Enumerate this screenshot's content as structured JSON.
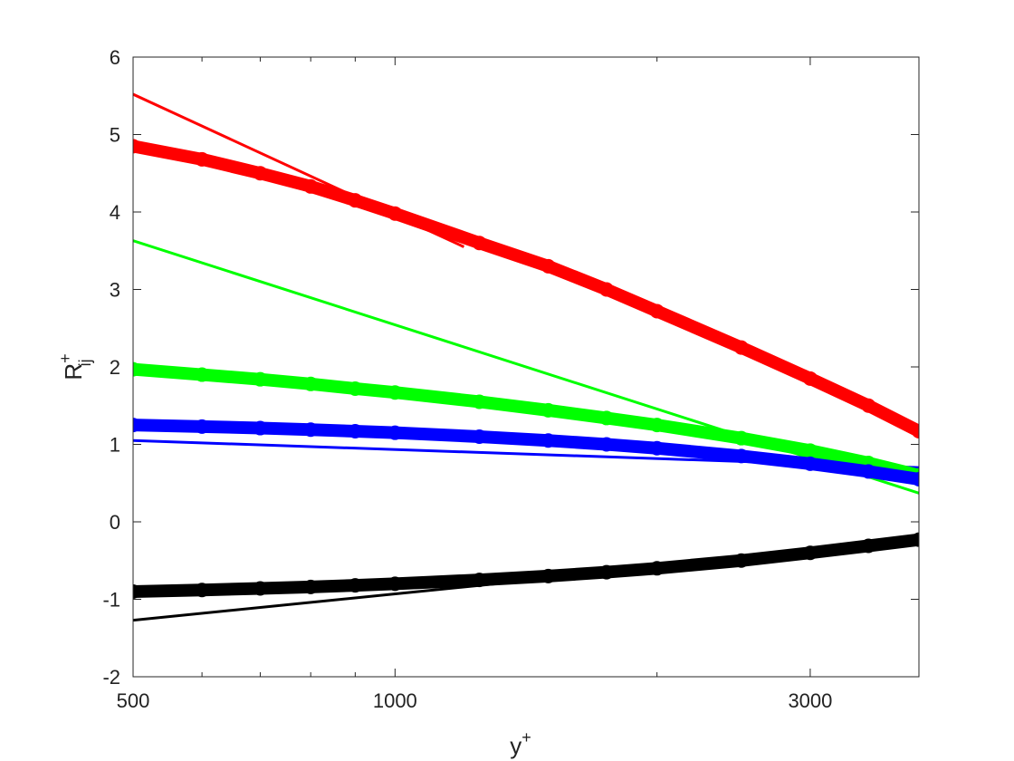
{
  "chart_data": {
    "type": "line",
    "xlabel": {
      "base": "y",
      "sup": "+"
    },
    "ylabel": {
      "base": "R",
      "sup": "+",
      "sub": "ij"
    },
    "xscale": "log",
    "xlim": [
      500,
      4000
    ],
    "ylim": [
      -2,
      6
    ],
    "xticks": [
      500,
      1000,
      3000
    ],
    "xminorticks": [
      600,
      700,
      800,
      900,
      2000,
      4000
    ],
    "yticks": [
      -2,
      -1,
      0,
      1,
      2,
      3,
      4,
      5,
      6
    ],
    "grid": false,
    "series": [
      {
        "color": "#ff0000",
        "style": "line",
        "x": [
          500,
          1200
        ],
        "values": [
          5.52,
          3.55
        ]
      },
      {
        "color": "#00ff00",
        "style": "line",
        "x": [
          500,
          4000
        ],
        "values": [
          3.63,
          0.37
        ]
      },
      {
        "color": "#0000ff",
        "style": "line",
        "x": [
          500,
          4000
        ],
        "values": [
          1.05,
          0.7
        ]
      },
      {
        "color": "#000000",
        "style": "line",
        "x": [
          500,
          1600
        ],
        "values": [
          -1.27,
          -0.7
        ]
      },
      {
        "color": "#ff0000",
        "style": "markers",
        "x": [
          500,
          600,
          700,
          800,
          900,
          1000,
          1250,
          1500,
          1750,
          2000,
          2500,
          3000,
          3500,
          4000
        ],
        "values": [
          4.85,
          4.68,
          4.5,
          4.33,
          4.15,
          3.98,
          3.6,
          3.3,
          3.0,
          2.72,
          2.25,
          1.85,
          1.5,
          1.17
        ]
      },
      {
        "color": "#00ff00",
        "style": "markers",
        "x": [
          500,
          600,
          700,
          800,
          900,
          1000,
          1250,
          1500,
          1750,
          2000,
          2500,
          3000,
          3500,
          4000
        ],
        "values": [
          1.97,
          1.9,
          1.84,
          1.78,
          1.72,
          1.67,
          1.55,
          1.44,
          1.34,
          1.25,
          1.08,
          0.92,
          0.76,
          0.6
        ]
      },
      {
        "color": "#0000ff",
        "style": "markers",
        "x": [
          500,
          600,
          700,
          800,
          900,
          1000,
          1250,
          1500,
          1750,
          2000,
          2500,
          3000,
          3500,
          4000
        ],
        "values": [
          1.25,
          1.23,
          1.21,
          1.19,
          1.17,
          1.15,
          1.1,
          1.05,
          1.0,
          0.95,
          0.85,
          0.75,
          0.65,
          0.55
        ]
      },
      {
        "color": "#000000",
        "style": "markers",
        "x": [
          500,
          600,
          700,
          800,
          900,
          1000,
          1250,
          1500,
          1750,
          2000,
          2500,
          3000,
          3500,
          4000
        ],
        "values": [
          -0.9,
          -0.88,
          -0.86,
          -0.84,
          -0.82,
          -0.8,
          -0.75,
          -0.7,
          -0.65,
          -0.6,
          -0.5,
          -0.4,
          -0.31,
          -0.23
        ]
      }
    ]
  }
}
